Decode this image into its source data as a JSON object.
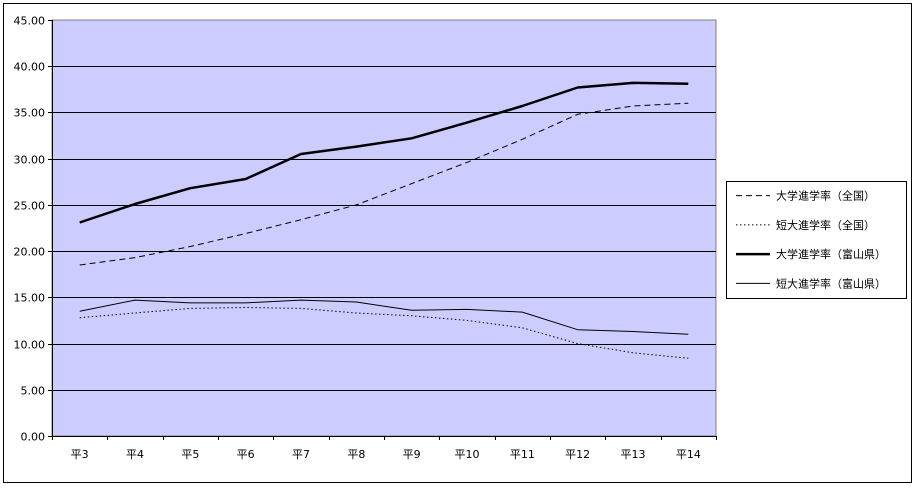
{
  "chart_data": {
    "type": "line",
    "categories": [
      "平3",
      "平4",
      "平5",
      "平6",
      "平7",
      "平8",
      "平9",
      "平10",
      "平11",
      "平12",
      "平13",
      "平14"
    ],
    "y_ticks": [
      "0.00",
      "5.00",
      "10.00",
      "15.00",
      "20.00",
      "25.00",
      "30.00",
      "35.00",
      "40.00",
      "45.00"
    ],
    "ylim": [
      0,
      45
    ],
    "grid": true,
    "plot_background": "#ccccff",
    "legend_position": "right",
    "series": [
      {
        "name": "大学進学率（全国）",
        "style": "dashed",
        "color": "#000000",
        "values": [
          18.5,
          19.3,
          20.5,
          21.9,
          23.4,
          25.0,
          27.3,
          29.6,
          32.1,
          34.8,
          35.7,
          36.0
        ]
      },
      {
        "name": "短大進学率（全国）",
        "style": "dotted",
        "color": "#000000",
        "values": [
          12.8,
          13.3,
          13.8,
          13.9,
          13.8,
          13.3,
          13.0,
          12.5,
          11.7,
          10.0,
          9.0,
          8.4
        ]
      },
      {
        "name": "大学進学率（富山県）",
        "style": "thick",
        "color": "#000000",
        "values": [
          23.1,
          25.1,
          26.8,
          27.8,
          30.5,
          31.3,
          32.2,
          33.9,
          35.7,
          37.7,
          38.2,
          38.1
        ]
      },
      {
        "name": "短大進学率（富山県）",
        "style": "thin",
        "color": "#000000",
        "values": [
          13.5,
          14.7,
          14.4,
          14.4,
          14.7,
          14.5,
          13.6,
          13.7,
          13.4,
          11.5,
          11.3,
          11.0
        ]
      }
    ]
  }
}
